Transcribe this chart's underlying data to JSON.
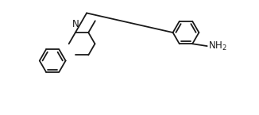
{
  "bg_color": "#ffffff",
  "line_color": "#1a1a1a",
  "line_width": 1.3,
  "fig_width": 3.26,
  "fig_height": 1.45,
  "dpi": 100,
  "xlim": [
    0,
    10
  ],
  "ylim": [
    0,
    4.45
  ]
}
